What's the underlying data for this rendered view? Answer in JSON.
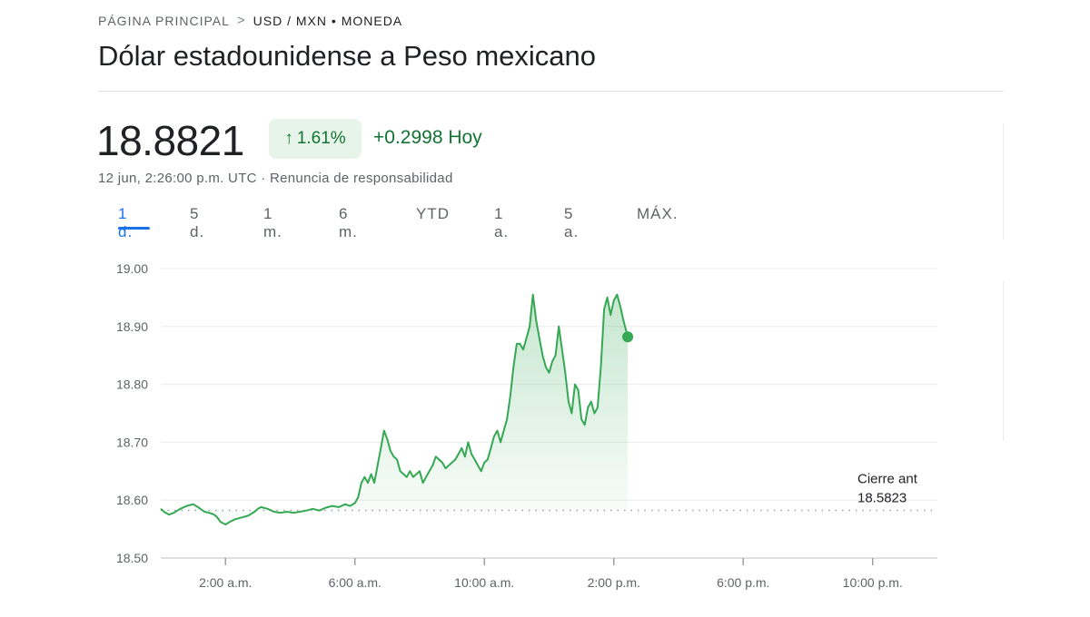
{
  "breadcrumb": {
    "home": "PÁGINA PRINCIPAL",
    "separator": ">",
    "current": "USD / MXN • MONEDA"
  },
  "title": "Dólar estadounidense a Peso mexicano",
  "quote": {
    "price": "18.8821",
    "change_percent": "1.61%",
    "change_arrow": "↑",
    "change_abs": "+0.2998 Hoy",
    "timestamp": "12 jun, 2:26:00 p.m. UTC · Renuncia de responsabilidad"
  },
  "tabs": [
    {
      "label": "1 d.",
      "active": true
    },
    {
      "label": "5 d.",
      "active": false
    },
    {
      "label": "1 m.",
      "active": false
    },
    {
      "label": "6 m.",
      "active": false
    },
    {
      "label": "YTD",
      "active": false
    },
    {
      "label": "1 a.",
      "active": false
    },
    {
      "label": "5 a.",
      "active": false
    },
    {
      "label": "MÁX.",
      "active": false
    }
  ],
  "colors": {
    "line": "#34a853",
    "positive_text": "#137333",
    "positive_bg": "#e6f4ea",
    "accent": "#1a73e8"
  },
  "chart_data": {
    "type": "area",
    "x_unit": "hour of day",
    "xlim": [
      0,
      24
    ],
    "ylim": [
      18.5,
      19.0
    ],
    "y_ticks": [
      "19.00",
      "18.90",
      "18.80",
      "18.70",
      "18.60",
      "18.50"
    ],
    "y_tick_values": [
      19.0,
      18.9,
      18.8,
      18.7,
      18.6,
      18.5
    ],
    "x_ticks": [
      "2:00 a.m.",
      "6:00 a.m.",
      "10:00 a.m.",
      "2:00 p.m.",
      "6:00 p.m.",
      "10:00 p.m."
    ],
    "x_tick_values": [
      2,
      6,
      10,
      14,
      18,
      22
    ],
    "previous_close": {
      "label": "Cierre ant",
      "value": 18.5823,
      "value_text": "18.5823"
    },
    "last_point": {
      "x": 14.43,
      "y": 18.8821
    },
    "series": [
      {
        "x": [
          0.0,
          0.1,
          0.25,
          0.4,
          0.6,
          0.8,
          1.0,
          1.15,
          1.35,
          1.5,
          1.65,
          1.75,
          1.85,
          2.0,
          2.15,
          2.3,
          2.5,
          2.7,
          2.9,
          3.0,
          3.1,
          3.3,
          3.5,
          3.7,
          3.9,
          4.1,
          4.3,
          4.5,
          4.7,
          4.9,
          5.1,
          5.3,
          5.5,
          5.7,
          5.85,
          6.0,
          6.1,
          6.2,
          6.3,
          6.4,
          6.5,
          6.6,
          6.7,
          6.8,
          6.9,
          7.0,
          7.1,
          7.2,
          7.3,
          7.4,
          7.5,
          7.6,
          7.7,
          7.8,
          7.9,
          8.0,
          8.1,
          8.2,
          8.3,
          8.4,
          8.5,
          8.6,
          8.7,
          8.8,
          8.9,
          9.0,
          9.1,
          9.2,
          9.3,
          9.4,
          9.5,
          9.6,
          9.7,
          9.8,
          9.9,
          10.0,
          10.1,
          10.2,
          10.3,
          10.4,
          10.5,
          10.6,
          10.7,
          10.8,
          10.9,
          11.0,
          11.1,
          11.2,
          11.3,
          11.4,
          11.5,
          11.6,
          11.7,
          11.8,
          11.9,
          12.0,
          12.1,
          12.2,
          12.3,
          12.4,
          12.5,
          12.6,
          12.7,
          12.8,
          12.9,
          13.0,
          13.1,
          13.2,
          13.3,
          13.4,
          13.5,
          13.6,
          13.7,
          13.8,
          13.9,
          14.0,
          14.1,
          14.2,
          14.3,
          14.43
        ],
        "y": [
          18.585,
          18.58,
          18.575,
          18.578,
          18.585,
          18.59,
          18.593,
          18.588,
          18.58,
          18.578,
          18.575,
          18.57,
          18.562,
          18.558,
          18.563,
          18.567,
          18.57,
          18.573,
          18.58,
          18.585,
          18.588,
          18.585,
          18.58,
          18.578,
          18.58,
          18.578,
          18.58,
          18.582,
          18.585,
          18.582,
          18.587,
          18.59,
          18.588,
          18.593,
          18.59,
          18.595,
          18.605,
          18.63,
          18.64,
          18.63,
          18.645,
          18.63,
          18.66,
          18.69,
          18.72,
          18.705,
          18.685,
          18.675,
          18.67,
          18.65,
          18.645,
          18.64,
          18.65,
          18.64,
          18.645,
          18.65,
          18.63,
          18.64,
          18.65,
          18.66,
          18.675,
          18.67,
          18.665,
          18.655,
          18.66,
          18.665,
          18.67,
          18.68,
          18.69,
          18.675,
          18.7,
          18.68,
          18.67,
          18.66,
          18.65,
          18.665,
          18.67,
          18.69,
          18.71,
          18.72,
          18.7,
          18.72,
          18.74,
          18.78,
          18.83,
          18.87,
          18.87,
          18.86,
          18.88,
          18.9,
          18.955,
          18.91,
          18.88,
          18.85,
          18.83,
          18.82,
          18.84,
          18.85,
          18.9,
          18.86,
          18.82,
          18.77,
          18.75,
          18.8,
          18.79,
          18.74,
          18.73,
          18.76,
          18.77,
          18.75,
          18.76,
          18.83,
          18.93,
          18.95,
          18.92,
          18.945,
          18.955,
          18.935,
          18.91,
          18.8821
        ]
      }
    ]
  }
}
